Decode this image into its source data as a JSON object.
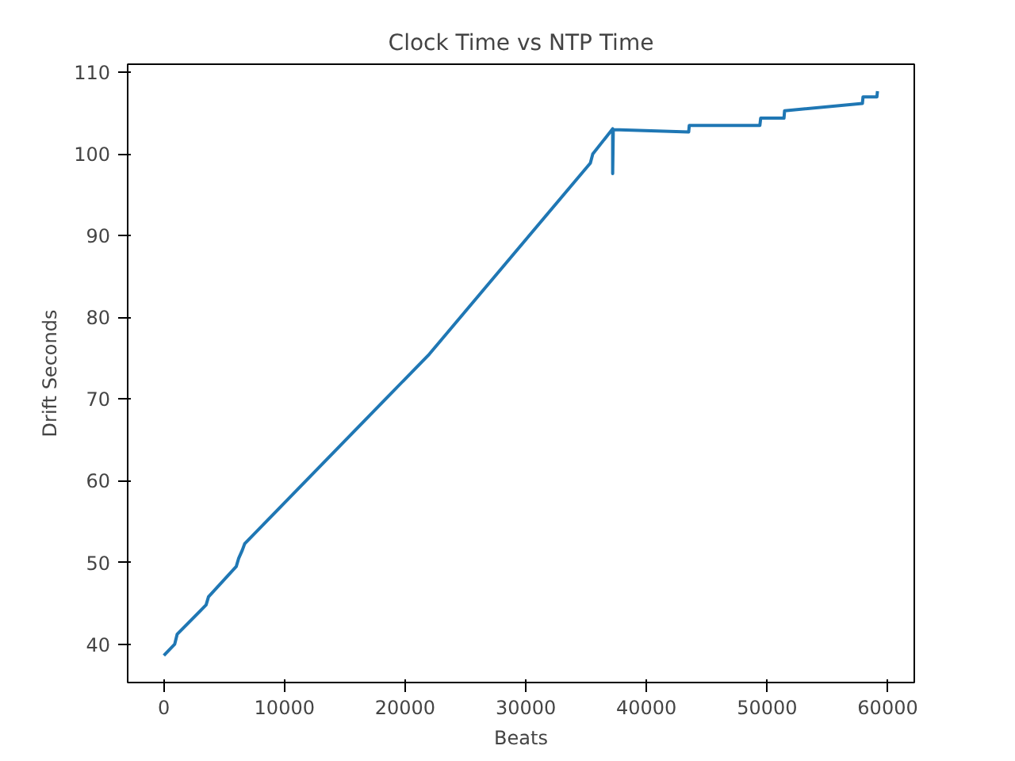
{
  "chart_data": {
    "type": "line",
    "title": "Clock Time vs NTP Time",
    "xlabel": "Beats",
    "ylabel": "Drift Seconds",
    "x": [
      0,
      900,
      1100,
      3500,
      3700,
      6000,
      6200,
      6500,
      6700,
      22000,
      35350,
      35550,
      37200,
      37200,
      37250,
      43500,
      43550,
      49400,
      49470,
      51400,
      51450,
      57900,
      57950,
      59100,
      59150
    ],
    "series": [
      {
        "color": "#1f77b4",
        "values": [
          38.6,
          40.0,
          41.2,
          44.8,
          45.8,
          49.5,
          50.5,
          51.5,
          52.3,
          75.5,
          98.9,
          100.0,
          103.1,
          97.6,
          103.0,
          102.7,
          103.5,
          103.5,
          104.4,
          104.4,
          105.3,
          106.2,
          107.0,
          107.0,
          107.7
        ]
      }
    ],
    "xlim": [
      -3000,
      62200
    ],
    "ylim": [
      35.3,
      111
    ],
    "xticks": [
      0,
      10000,
      20000,
      30000,
      40000,
      50000,
      60000
    ],
    "yticks": [
      40,
      50,
      60,
      70,
      80,
      90,
      100,
      110
    ],
    "grid": false,
    "marker": "none",
    "line_style": "solid"
  }
}
